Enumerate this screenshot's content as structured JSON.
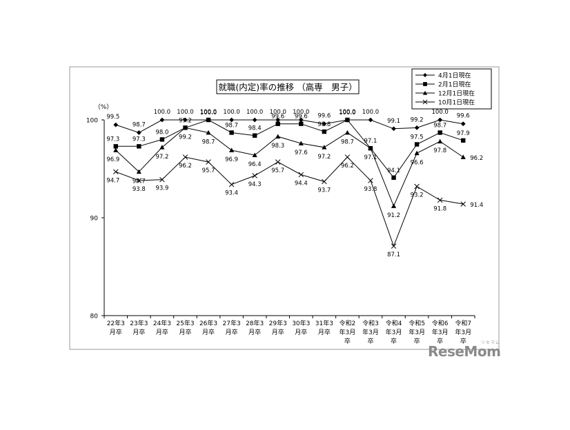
{
  "chart_data": {
    "type": "line",
    "title": "就職(内定)率の推移 （高専　男子）",
    "ylabel": "（%）",
    "ylim": [
      80,
      100
    ],
    "yticks": [
      "80",
      "90",
      "100"
    ],
    "legend_position": "top-right",
    "categories": [
      [
        "22年3",
        "月卒"
      ],
      [
        "23年3",
        "月卒"
      ],
      [
        "24年3",
        "月卒"
      ],
      [
        "25年3",
        "月卒"
      ],
      [
        "26年3",
        "月卒"
      ],
      [
        "27年3",
        "月卒"
      ],
      [
        "28年3",
        "月卒"
      ],
      [
        "29年3",
        "月卒"
      ],
      [
        "30年3",
        "月卒"
      ],
      [
        "31年3",
        "月卒"
      ],
      [
        "令和2",
        "年3月",
        "卒"
      ],
      [
        "令和3",
        "年3月",
        "卒"
      ],
      [
        "令和4",
        "年3月",
        "卒"
      ],
      [
        "令和5",
        "年3月",
        "卒"
      ],
      [
        "令和6",
        "年3月",
        "卒"
      ],
      [
        "令和7",
        "年3月",
        "卒"
      ]
    ],
    "series": [
      {
        "name": "4月1日現在",
        "marker": "diamond",
        "values": [
          99.5,
          98.7,
          100.0,
          100.0,
          100.0,
          100.0,
          100.0,
          100.0,
          100.0,
          99.6,
          100.0,
          100.0,
          99.1,
          99.2,
          100.0,
          99.6
        ],
        "labels": [
          "99.5",
          "98.7",
          "100.0",
          "100.0",
          "100.0",
          "100.0",
          "100.0",
          "100.0",
          "100.0",
          "99.6",
          "100.0",
          "100.0",
          "99.1",
          "99.2",
          "100.0",
          "99.6"
        ]
      },
      {
        "name": "2月1日現在",
        "marker": "square",
        "values": [
          97.3,
          97.3,
          98.0,
          99.2,
          100.0,
          98.7,
          98.4,
          99.6,
          99.6,
          98.8,
          100.0,
          97.1,
          94.1,
          97.5,
          98.7,
          97.9
        ],
        "labels": [
          "97.3",
          "97.3",
          "98.0",
          "99.2",
          "100.0",
          "98.7",
          "98.4",
          "99.6",
          "99.6",
          "98.8",
          "100.0",
          "97.1",
          "94.1",
          "97.5",
          "98.7",
          "97.9"
        ]
      },
      {
        "name": "12月1日現在",
        "marker": "triangle",
        "values": [
          96.9,
          94.7,
          97.2,
          99.2,
          98.7,
          96.9,
          96.4,
          98.3,
          97.6,
          97.2,
          98.7,
          97.1,
          91.2,
          96.6,
          97.8,
          96.2
        ],
        "labels": [
          "96.9",
          "94.7",
          "97.2",
          "99.2",
          "98.7",
          "96.9",
          "96.4",
          "98.3",
          "97.6",
          "97.2",
          "98.7",
          "97.1",
          "91.2",
          "96.6",
          "97.8",
          "96.2"
        ]
      },
      {
        "name": "10月1日現在",
        "marker": "x",
        "values": [
          94.7,
          93.8,
          93.9,
          96.2,
          95.7,
          93.4,
          94.3,
          95.7,
          94.4,
          93.7,
          96.2,
          93.8,
          87.1,
          93.2,
          91.8,
          91.4
        ],
        "labels": [
          "94.7",
          "93.8",
          "93.9",
          "96.2",
          "95.7",
          "93.4",
          "94.3",
          "95.7",
          "94.4",
          "93.7",
          "96.2",
          "93.8",
          "87.1",
          "93.2",
          "91.8",
          "91.4"
        ]
      }
    ]
  },
  "watermark": {
    "text": "ReseMom",
    "ruby": "リセマム"
  }
}
